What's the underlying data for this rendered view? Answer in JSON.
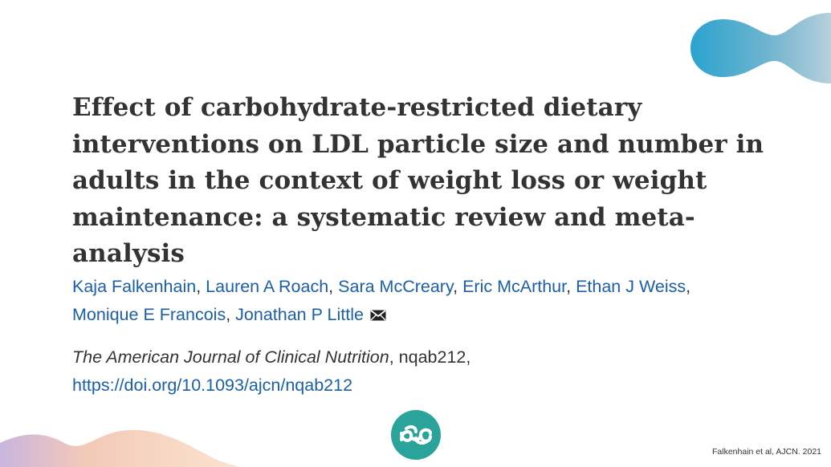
{
  "title": "Effect of carbohydrate-restricted dietary interventions on LDL particle size and number in adults in the context of weight loss or weight maintenance: a systematic review and meta-analysis",
  "title_lines": [
    "Effect of carbohydrate-restricted dietary",
    "interventions on LDL particle size and number in",
    "adults in the context of weight loss or weight",
    "maintenance: a systematic review and meta-",
    "analysis"
  ],
  "authors": [
    "Kaja Falkenhain",
    "Lauren A Roach",
    "Sara McCreary",
    "Eric McArthur",
    "Ethan J Weiss",
    "Monique E Francois",
    "Jonathan P Little"
  ],
  "separator": ",",
  "author_mail_icon": "envelope-icon",
  "journal": {
    "name": "The American Journal of Clinical Nutrition",
    "article_id": ", nqab212,",
    "doi": "https://doi.org/10.1093/ajcn/nqab212"
  },
  "footnote": "Falkenhain et al, AJCN. 2021",
  "logo_icon": "chain-link-logo-icon",
  "colors": {
    "link": "#1b5fa6",
    "title": "#333333",
    "logo_teal": "#2aa39a",
    "blob_blue": "#2aa3cf"
  }
}
